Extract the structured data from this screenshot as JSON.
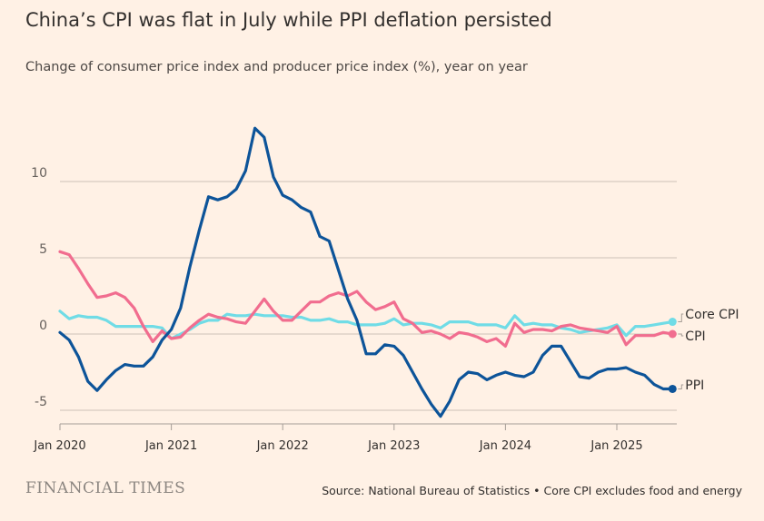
{
  "header": {
    "title": "China’s CPI was flat in July while PPI deflation persisted",
    "subtitle": "Change of consumer price index and producer price index (%), year on year"
  },
  "footer": {
    "logo": "FINANCIAL TIMES",
    "source": "Source: National Bureau of Statistics • Core CPI excludes food and energy"
  },
  "chart_data": {
    "type": "line",
    "start": "Jan 2020",
    "frequency": "monthly",
    "x_ticks": [
      "Jan 2020",
      "Jan 2021",
      "Jan 2022",
      "Jan 2023",
      "Jan 2024",
      "Jan 2025"
    ],
    "y_ticks": [
      -5,
      0,
      5,
      10
    ],
    "ylim": [
      -6,
      14
    ],
    "grid": true,
    "legend": "direct labels at line ends",
    "series": [
      {
        "name": "Core CPI",
        "color": "#70dce6",
        "values": [
          1.5,
          1.0,
          1.2,
          1.1,
          1.1,
          0.9,
          0.5,
          0.5,
          0.5,
          0.5,
          0.5,
          0.4,
          -0.3,
          0.0,
          0.3,
          0.7,
          0.9,
          0.9,
          1.3,
          1.2,
          1.2,
          1.3,
          1.2,
          1.2,
          1.2,
          1.1,
          1.1,
          0.9,
          0.9,
          1.0,
          0.8,
          0.8,
          0.6,
          0.6,
          0.6,
          0.7,
          1.0,
          0.6,
          0.7,
          0.7,
          0.6,
          0.4,
          0.8,
          0.8,
          0.8,
          0.6,
          0.6,
          0.6,
          0.4,
          1.2,
          0.6,
          0.7,
          0.6,
          0.6,
          0.4,
          0.3,
          0.1,
          0.2,
          0.3,
          0.4,
          0.6,
          -0.1,
          0.5,
          0.5,
          0.6,
          0.7,
          0.8
        ]
      },
      {
        "name": "CPI",
        "color": "#f16d8f",
        "values": [
          5.4,
          5.2,
          4.3,
          3.3,
          2.4,
          2.5,
          2.7,
          2.4,
          1.7,
          0.5,
          -0.5,
          0.2,
          -0.3,
          -0.2,
          0.4,
          0.9,
          1.3,
          1.1,
          1.0,
          0.8,
          0.7,
          1.5,
          2.3,
          1.5,
          0.9,
          0.9,
          1.5,
          2.1,
          2.1,
          2.5,
          2.7,
          2.5,
          2.8,
          2.1,
          1.6,
          1.8,
          2.1,
          1.0,
          0.7,
          0.1,
          0.2,
          0.0,
          -0.3,
          0.1,
          0.0,
          -0.2,
          -0.5,
          -0.3,
          -0.8,
          0.7,
          0.1,
          0.3,
          0.3,
          0.2,
          0.5,
          0.6,
          0.4,
          0.3,
          0.2,
          0.1,
          0.5,
          -0.7,
          -0.1,
          -0.1,
          -0.1,
          0.1,
          0.0
        ]
      },
      {
        "name": "PPI",
        "color": "#0d5499",
        "values": [
          0.1,
          -0.4,
          -1.5,
          -3.1,
          -3.7,
          -3.0,
          -2.4,
          -2.0,
          -2.1,
          -2.1,
          -1.5,
          -0.4,
          0.3,
          1.7,
          4.4,
          6.8,
          9.0,
          8.8,
          9.0,
          9.5,
          10.7,
          13.5,
          12.9,
          10.3,
          9.1,
          8.8,
          8.3,
          8.0,
          6.4,
          6.1,
          4.2,
          2.3,
          0.9,
          -1.3,
          -1.3,
          -0.7,
          -0.8,
          -1.4,
          -2.5,
          -3.6,
          -4.6,
          -5.4,
          -4.4,
          -3.0,
          -2.5,
          -2.6,
          -3.0,
          -2.7,
          -2.5,
          -2.7,
          -2.8,
          -2.5,
          -1.4,
          -0.8,
          -0.8,
          -1.8,
          -2.8,
          -2.9,
          -2.5,
          -2.3,
          -2.3,
          -2.2,
          -2.5,
          -2.7,
          -3.3,
          -3.6,
          -3.6
        ]
      }
    ]
  }
}
